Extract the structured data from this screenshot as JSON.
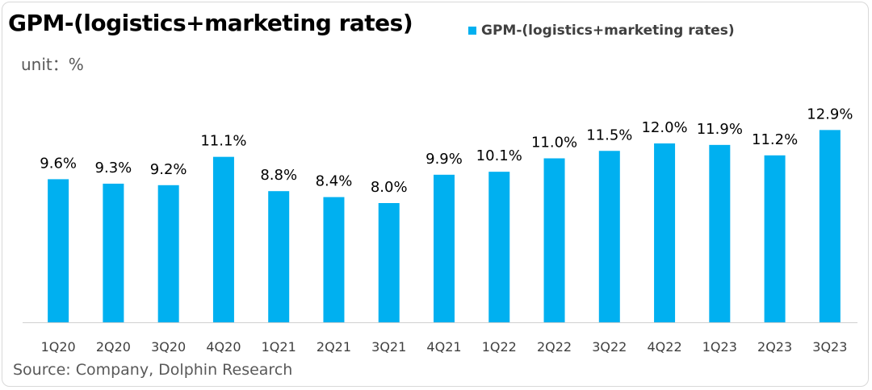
{
  "chart_data": {
    "type": "bar",
    "title": "GPM-(logistics+marketing rates)",
    "unit_label": "unit：%",
    "categories": [
      "1Q20",
      "2Q20",
      "3Q20",
      "4Q20",
      "1Q21",
      "2Q21",
      "3Q21",
      "4Q21",
      "1Q22",
      "2Q22",
      "3Q22",
      "4Q22",
      "1Q23",
      "2Q23",
      "3Q23"
    ],
    "series": [
      {
        "name": "GPM-(logistics+marketing rates)",
        "values": [
          9.6,
          9.3,
          9.2,
          11.1,
          8.8,
          8.4,
          8.0,
          9.9,
          10.1,
          11.0,
          11.5,
          12.0,
          11.9,
          11.2,
          12.9
        ],
        "data_labels": [
          "9.6%",
          "9.3%",
          "9.2%",
          "11.1%",
          "8.8%",
          "8.4%",
          "8.0%",
          "9.9%",
          "10.1%",
          "11.0%",
          "11.5%",
          "12.0%",
          "11.9%",
          "11.2%",
          "12.9%"
        ]
      }
    ],
    "ylim": [
      0,
      14
    ],
    "grid": false,
    "legend_position": "top",
    "bar_color": "#00B0F0",
    "source": "Source: Company, Dolphin Research"
  }
}
